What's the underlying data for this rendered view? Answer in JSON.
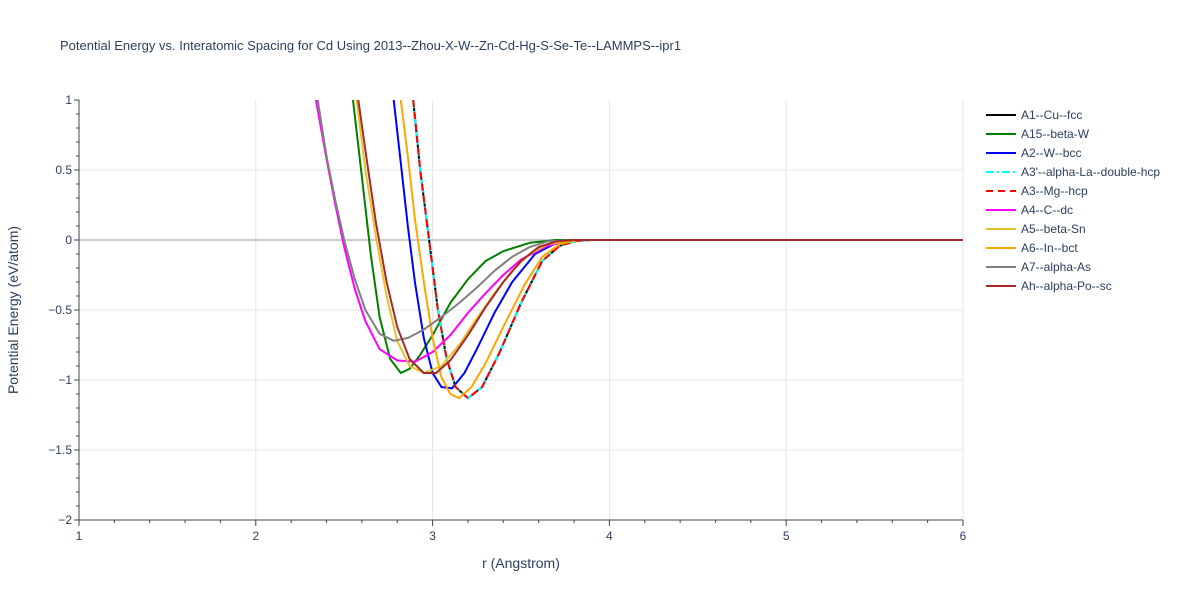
{
  "chart_data": {
    "type": "line",
    "title": "Potential Energy vs. Interatomic Spacing for Cd Using 2013--Zhou-X-W--Zn-Cd-Hg-S-Se-Te--LAMMPS--ipr1",
    "xlabel": "r (Angstrom)",
    "ylabel": "Potential Energy (eV/atom)",
    "xlim": [
      1,
      6
    ],
    "ylim": [
      -2,
      1
    ],
    "xticks": [
      "1",
      "2",
      "3",
      "4",
      "5",
      "6"
    ],
    "yticks": [
      "1",
      "0.5",
      "0",
      "−0.5",
      "−1",
      "−1.5",
      "−2"
    ],
    "grid": true,
    "legend_position": "right",
    "series": [
      {
        "name": "A1--Cu--fcc",
        "color": "#000000",
        "dash": "solid",
        "x": [
          2.89,
          2.93,
          2.98,
          3.03,
          3.08,
          3.13,
          3.2,
          3.28,
          3.38,
          3.5,
          3.62,
          3.72,
          3.82,
          3.9,
          4.0,
          5.0,
          6.0
        ],
        "y": [
          1.0,
          0.5,
          0.0,
          -0.5,
          -0.85,
          -1.05,
          -1.13,
          -1.05,
          -0.8,
          -0.45,
          -0.15,
          -0.04,
          -0.005,
          0.0,
          0.0,
          0.0,
          0.0
        ]
      },
      {
        "name": "A15--beta-W",
        "color": "#008000",
        "dash": "solid",
        "x": [
          2.55,
          2.6,
          2.65,
          2.7,
          2.76,
          2.82,
          2.87,
          2.93,
          3.0,
          3.1,
          3.2,
          3.3,
          3.4,
          3.55,
          3.7,
          3.8,
          4.0,
          5.0,
          6.0
        ],
        "y": [
          1.0,
          0.45,
          -0.1,
          -0.55,
          -0.85,
          -0.95,
          -0.92,
          -0.82,
          -0.68,
          -0.45,
          -0.28,
          -0.15,
          -0.08,
          -0.02,
          0.0,
          0.0,
          0.0,
          0.0,
          0.0
        ]
      },
      {
        "name": "A2--W--bcc",
        "color": "#0000ff",
        "dash": "solid",
        "x": [
          2.78,
          2.82,
          2.86,
          2.9,
          2.95,
          3.0,
          3.05,
          3.11,
          3.18,
          3.25,
          3.35,
          3.45,
          3.58,
          3.7,
          3.82,
          4.0,
          5.0,
          6.0
        ],
        "y": [
          1.0,
          0.55,
          0.1,
          -0.3,
          -0.7,
          -0.95,
          -1.05,
          -1.06,
          -0.95,
          -0.78,
          -0.52,
          -0.3,
          -0.1,
          -0.02,
          0.0,
          0.0,
          0.0,
          0.0
        ]
      },
      {
        "name": "A3'--alpha-La--double-hcp",
        "color": "#00ffff",
        "dash": "dashdot",
        "x": [
          2.89,
          2.93,
          2.98,
          3.03,
          3.08,
          3.13,
          3.2,
          3.28,
          3.38,
          3.5,
          3.62,
          3.72,
          3.82,
          3.9,
          4.0,
          5.0,
          6.0
        ],
        "y": [
          1.0,
          0.5,
          0.0,
          -0.5,
          -0.85,
          -1.05,
          -1.13,
          -1.05,
          -0.8,
          -0.45,
          -0.15,
          -0.04,
          -0.005,
          0.0,
          0.0,
          0.0,
          0.0
        ]
      },
      {
        "name": "A3--Mg--hcp",
        "color": "#ff0000",
        "dash": "dash",
        "x": [
          2.89,
          2.93,
          2.98,
          3.03,
          3.08,
          3.13,
          3.2,
          3.28,
          3.38,
          3.5,
          3.62,
          3.72,
          3.82,
          3.9,
          4.0,
          5.0,
          6.0
        ],
        "y": [
          1.0,
          0.5,
          0.0,
          -0.5,
          -0.85,
          -1.05,
          -1.13,
          -1.05,
          -0.8,
          -0.45,
          -0.15,
          -0.04,
          -0.005,
          0.0,
          0.0,
          0.0,
          0.0
        ]
      },
      {
        "name": "A4--C--dc",
        "color": "#ff00ff",
        "dash": "solid",
        "x": [
          2.34,
          2.4,
          2.45,
          2.5,
          2.56,
          2.62,
          2.7,
          2.8,
          2.9,
          3.0,
          3.1,
          3.2,
          3.3,
          3.4,
          3.5,
          3.65,
          3.8,
          4.0,
          5.0,
          6.0
        ],
        "y": [
          1.0,
          0.58,
          0.25,
          -0.05,
          -0.35,
          -0.58,
          -0.78,
          -0.86,
          -0.87,
          -0.8,
          -0.68,
          -0.52,
          -0.38,
          -0.25,
          -0.14,
          -0.04,
          0.0,
          0.0,
          0.0,
          0.0
        ]
      },
      {
        "name": "A5--beta-Sn",
        "color": "#e6c229",
        "dash": "solid",
        "x": [
          2.57,
          2.62,
          2.68,
          2.74,
          2.8,
          2.87,
          2.95,
          3.05,
          3.15,
          3.25,
          3.35,
          3.45,
          3.55,
          3.65,
          3.8,
          4.0,
          5.0,
          6.0
        ],
        "y": [
          1.0,
          0.5,
          0.02,
          -0.4,
          -0.72,
          -0.9,
          -0.95,
          -0.9,
          -0.75,
          -0.56,
          -0.38,
          -0.22,
          -0.1,
          -0.03,
          0.0,
          0.0,
          0.0,
          0.0
        ]
      },
      {
        "name": "A6--In--bct",
        "color": "#ffa500",
        "dash": "solid",
        "x": [
          2.82,
          2.86,
          2.9,
          2.95,
          3.0,
          3.05,
          3.1,
          3.15,
          3.22,
          3.3,
          3.4,
          3.52,
          3.62,
          3.72,
          3.82,
          4.0,
          5.0,
          6.0
        ],
        "y": [
          1.0,
          0.6,
          0.15,
          -0.3,
          -0.7,
          -0.98,
          -1.1,
          -1.13,
          -1.05,
          -0.88,
          -0.62,
          -0.32,
          -0.12,
          -0.03,
          0.0,
          0.0,
          0.0,
          0.0
        ]
      },
      {
        "name": "A7--alpha-As",
        "color": "#808080",
        "dash": "solid",
        "x": [
          2.35,
          2.4,
          2.45,
          2.5,
          2.56,
          2.62,
          2.7,
          2.78,
          2.86,
          2.95,
          3.05,
          3.15,
          3.25,
          3.35,
          3.45,
          3.55,
          3.65,
          3.8,
          4.0,
          5.0,
          6.0
        ],
        "y": [
          1.0,
          0.6,
          0.28,
          0.0,
          -0.28,
          -0.5,
          -0.67,
          -0.72,
          -0.7,
          -0.64,
          -0.55,
          -0.45,
          -0.34,
          -0.22,
          -0.12,
          -0.05,
          -0.01,
          0.0,
          0.0,
          0.0,
          0.0
        ]
      },
      {
        "name": "Ah--alpha-Po--sc",
        "color": "#a52a2a",
        "dash": "solid",
        "x": [
          2.58,
          2.63,
          2.68,
          2.74,
          2.8,
          2.87,
          2.95,
          3.02,
          3.1,
          3.2,
          3.3,
          3.4,
          3.5,
          3.6,
          3.7,
          3.8,
          4.0,
          5.0,
          6.0
        ],
        "y": [
          1.0,
          0.55,
          0.12,
          -0.3,
          -0.62,
          -0.85,
          -0.95,
          -0.95,
          -0.86,
          -0.68,
          -0.48,
          -0.3,
          -0.15,
          -0.05,
          -0.01,
          0.0,
          0.0,
          0.0,
          0.0
        ]
      }
    ]
  }
}
